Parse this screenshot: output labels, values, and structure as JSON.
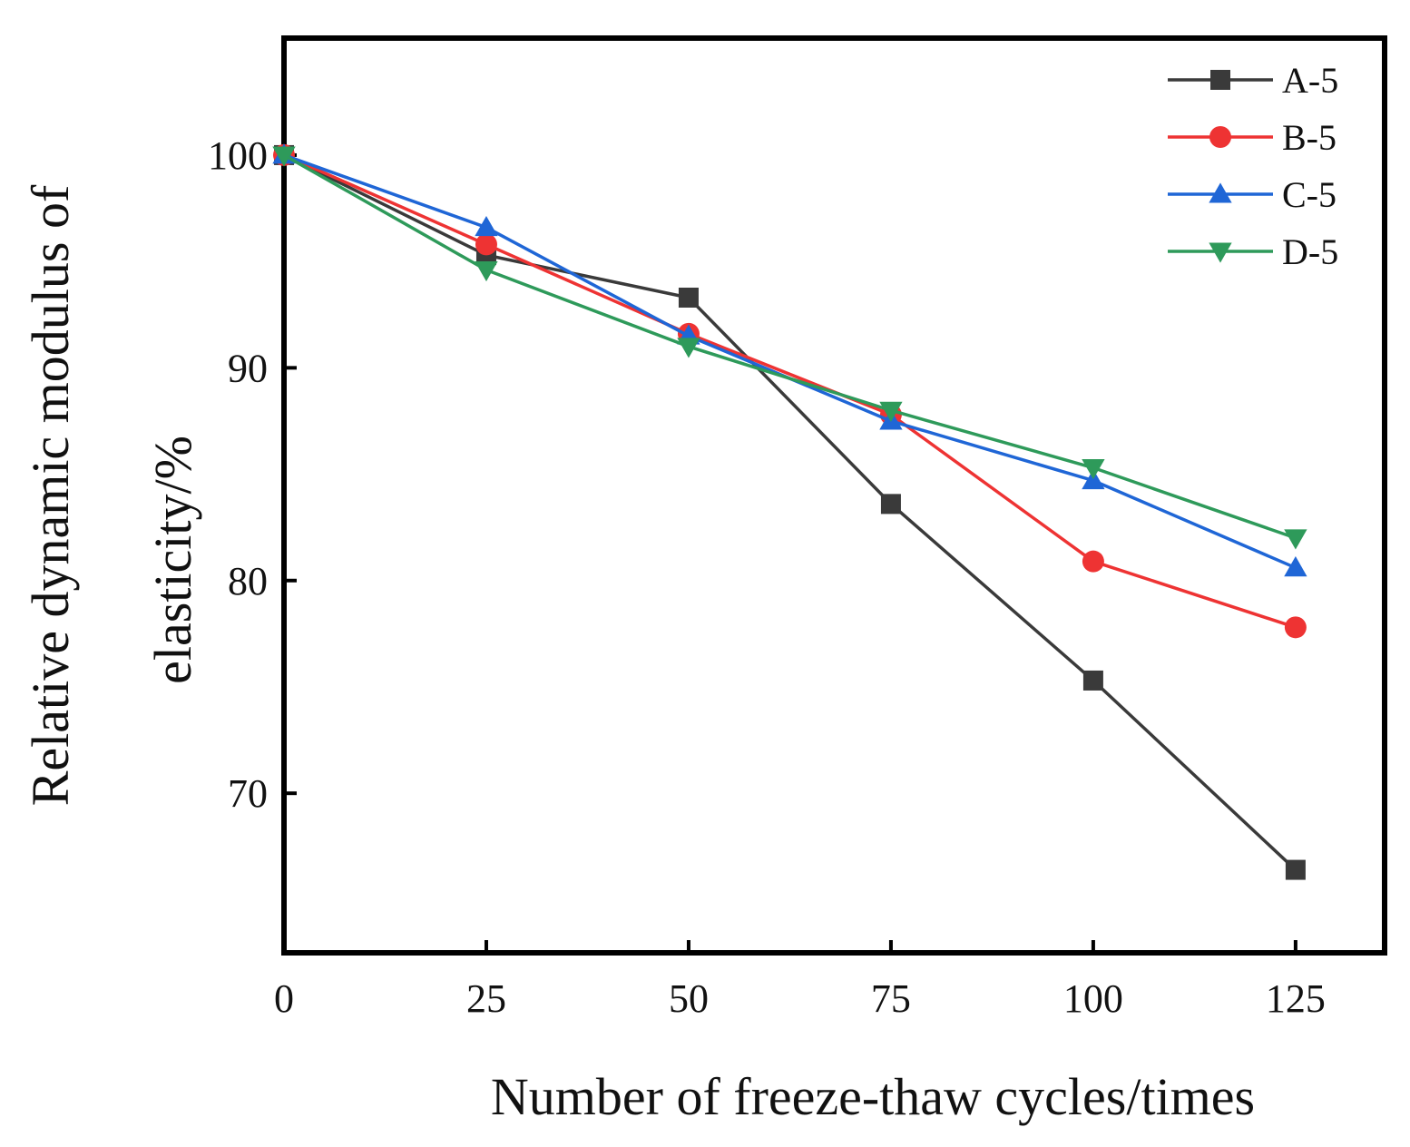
{
  "chart_data": {
    "type": "line",
    "title": "",
    "xlabel": "Number of freeze-thaw cycles/times",
    "ylabel_lines": [
      "Relative dynamic modulus of",
      "elasticity/%"
    ],
    "x": [
      0,
      25,
      50,
      75,
      100,
      125
    ],
    "xlim": [
      0,
      136
    ],
    "ylim": [
      62.5,
      105.5
    ],
    "xticks": [
      0,
      25,
      50,
      75,
      100,
      125
    ],
    "yticks": [
      70,
      80,
      90,
      100
    ],
    "grid": false,
    "legend_position": "top-right",
    "series": [
      {
        "name": "A-5",
        "color": "#3a3a3a",
        "marker": "square",
        "values": [
          100,
          95.3,
          93.3,
          83.6,
          75.3,
          66.4
        ]
      },
      {
        "name": "B-5",
        "color": "#ee3333",
        "marker": "circle",
        "values": [
          100,
          95.8,
          91.6,
          87.8,
          80.9,
          77.8
        ]
      },
      {
        "name": "C-5",
        "color": "#1f66d6",
        "marker": "triangle-up",
        "values": [
          100,
          96.6,
          91.5,
          87.5,
          84.7,
          80.6
        ]
      },
      {
        "name": "D-5",
        "color": "#2e9a5a",
        "marker": "triangle-down",
        "values": [
          100,
          94.6,
          91.0,
          88.0,
          85.3,
          82.0
        ]
      }
    ]
  }
}
